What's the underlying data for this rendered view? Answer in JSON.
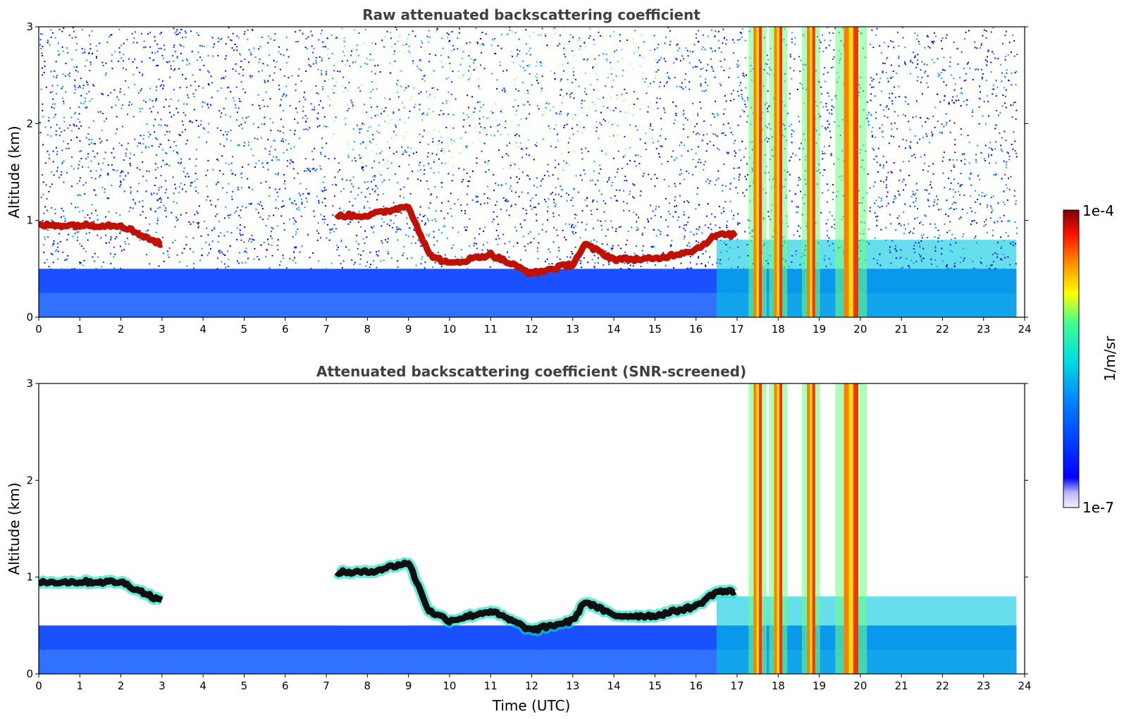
{
  "chart_data": [
    {
      "type": "heatmap",
      "title": "Raw attenuated backscattering coefficient",
      "xlabel": "",
      "ylabel": "Altitude (km)",
      "xlim": [
        0,
        24
      ],
      "ylim": [
        0,
        3
      ],
      "x_ticks": [
        "0",
        "1",
        "2",
        "3",
        "4",
        "5",
        "6",
        "7",
        "8",
        "9",
        "10",
        "11",
        "12",
        "13",
        "14",
        "15",
        "16",
        "17",
        "18",
        "19",
        "20",
        "21",
        "22",
        "23",
        "24"
      ],
      "y_ticks": [
        "0",
        "1",
        "2",
        "3"
      ],
      "data_end_time": 23.8,
      "cloud_layer": {
        "time_utc": [
          0,
          1,
          2,
          3,
          4,
          7.2,
          8,
          9,
          9.5,
          10,
          11,
          12,
          13,
          13.3,
          14,
          15,
          16,
          16.5,
          17
        ],
        "altitude_km": [
          0.95,
          0.95,
          0.95,
          0.75,
          null,
          1.05,
          1.05,
          1.15,
          0.65,
          0.55,
          0.65,
          0.45,
          0.55,
          0.75,
          0.6,
          0.6,
          0.7,
          0.85,
          0.85
        ]
      },
      "intense_columns_utc": [
        [
          17.4,
          17.6
        ],
        [
          17.9,
          18.1
        ],
        [
          18.7,
          18.9
        ],
        [
          19.6,
          19.95
        ]
      ],
      "ground_layer_top_km": 0.5,
      "noise": true
    },
    {
      "type": "heatmap",
      "title": "Attenuated backscattering coefficient (SNR-screened)",
      "xlabel": "Time (UTC)",
      "ylabel": "Altitude (km)",
      "xlim": [
        0,
        24
      ],
      "ylim": [
        0,
        3
      ],
      "x_ticks": [
        "0",
        "1",
        "2",
        "3",
        "4",
        "5",
        "6",
        "7",
        "8",
        "9",
        "10",
        "11",
        "12",
        "13",
        "14",
        "15",
        "16",
        "17",
        "18",
        "19",
        "20",
        "21",
        "22",
        "23",
        "24"
      ],
      "y_ticks": [
        "0",
        "1",
        "2",
        "3"
      ],
      "data_end_time": 23.8,
      "cloud_layer": {
        "time_utc": [
          0,
          1,
          2,
          3,
          4,
          7.2,
          8,
          9,
          9.5,
          10,
          11,
          12,
          13,
          13.3,
          14,
          15,
          16,
          16.5,
          17
        ],
        "altitude_km": [
          0.95,
          0.95,
          0.95,
          0.75,
          null,
          1.05,
          1.05,
          1.15,
          0.65,
          0.55,
          0.65,
          0.45,
          0.55,
          0.75,
          0.6,
          0.6,
          0.7,
          0.85,
          0.85
        ]
      },
      "intense_columns_utc": [
        [
          17.4,
          17.6
        ],
        [
          17.9,
          18.1
        ],
        [
          18.7,
          18.9
        ],
        [
          19.6,
          19.95
        ]
      ],
      "ground_layer_top_km": 0.5,
      "noise": false
    }
  ],
  "colorbar": {
    "label": "1/m/sr",
    "max_label": "1e-4",
    "min_label": "1e-7",
    "min_value": 1e-07,
    "max_value": 0.0001,
    "scale": "log",
    "colormap": "jet",
    "colors": [
      "#ffffff",
      "#0000ff",
      "#00bfff",
      "#00ffa0",
      "#ffff00",
      "#ff8000",
      "#ff0000",
      "#800000"
    ]
  }
}
